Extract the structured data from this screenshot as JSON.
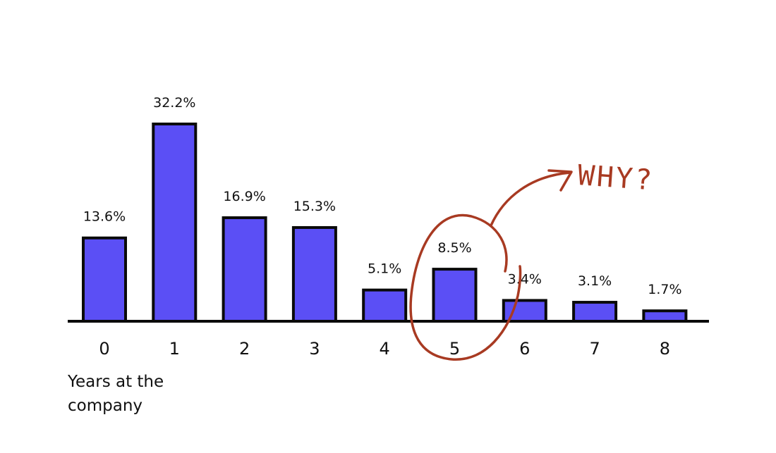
{
  "chart_data": {
    "type": "bar",
    "categories": [
      "0",
      "1",
      "2",
      "3",
      "4",
      "5",
      "6",
      "7",
      "8"
    ],
    "values": [
      13.6,
      32.2,
      16.9,
      15.3,
      5.1,
      8.5,
      3.4,
      3.1,
      1.7
    ],
    "value_labels": [
      "13.6%",
      "32.2%",
      "16.9%",
      "15.3%",
      "5.1%",
      "8.5%",
      "3.4%",
      "3.1%",
      "1.7%"
    ],
    "xlabel": "Years at the company",
    "xlabel_lines": [
      "Years at the",
      "company"
    ],
    "ylabel": "",
    "ylim": [
      0,
      32.2
    ],
    "grid": false,
    "bar_color": "#5b4ff5",
    "annotation": {
      "text": "WHY?",
      "highlighted_category": "5",
      "color": "#a83a22"
    }
  }
}
